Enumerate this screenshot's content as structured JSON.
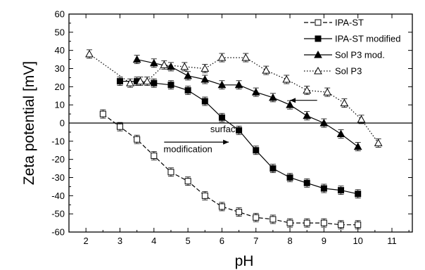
{
  "chart_data": {
    "type": "line",
    "xlabel": "pH",
    "ylabel": "Zeta potential [mV]",
    "xlim": [
      1.5,
      11.6
    ],
    "ylim": [
      -60,
      60
    ],
    "xticks": [
      2,
      3,
      4,
      5,
      6,
      7,
      8,
      9,
      10,
      11
    ],
    "yticks": [
      -60,
      -50,
      -40,
      -30,
      -20,
      -10,
      0,
      10,
      20,
      30,
      40,
      50,
      60
    ],
    "grid": false,
    "legend_position": "top-right",
    "series": [
      {
        "name": "IPA-ST",
        "marker": "open-square",
        "line": "dashed",
        "x": [
          2.5,
          3.0,
          3.5,
          4.0,
          4.5,
          5.0,
          5.5,
          6.0,
          6.5,
          7.0,
          7.5,
          8.0,
          8.5,
          9.0,
          9.5,
          10.0
        ],
        "y": [
          5,
          -2,
          -9,
          -18,
          -27,
          -32,
          -40,
          -46,
          -49,
          -52,
          -53,
          -55,
          -55,
          -55,
          -56,
          -56
        ]
      },
      {
        "name": "IPA-ST modified",
        "marker": "filled-square",
        "line": "solid",
        "x": [
          3.0,
          3.5,
          4.0,
          4.5,
          5.0,
          5.5,
          6.0,
          6.5,
          7.0,
          7.5,
          8.0,
          8.5,
          9.0,
          9.5,
          10.0
        ],
        "y": [
          23,
          23,
          22,
          21,
          18,
          12,
          3,
          -4,
          -15,
          -25,
          -30,
          -33,
          -36,
          -37,
          -39
        ]
      },
      {
        "name": "Sol P3 mod.",
        "marker": "filled-triangle",
        "line": "solid",
        "x": [
          3.5,
          4.0,
          4.5,
          5.0,
          5.5,
          6.0,
          6.5,
          7.0,
          7.5,
          8.0,
          8.5,
          9.0,
          9.5,
          10.0
        ],
        "y": [
          35,
          33,
          31,
          26,
          24,
          21,
          21,
          17,
          14,
          10,
          4,
          0,
          -6,
          -13
        ]
      },
      {
        "name": "Sol P3",
        "marker": "open-triangle",
        "line": "dotted",
        "x": [
          2.1,
          3.3,
          3.6,
          3.8,
          4.3,
          4.9,
          5.5,
          6.0,
          6.7,
          7.3,
          7.9,
          8.5,
          9.1,
          9.6,
          10.1,
          10.6
        ],
        "y": [
          38,
          22,
          23,
          23,
          32,
          31,
          30,
          36,
          36,
          29,
          24,
          18,
          17,
          11,
          2,
          -11
        ]
      }
    ],
    "annotations": [
      {
        "text": "surface",
        "x": 6.1,
        "y": -5
      },
      {
        "text": "modification",
        "x": 5.0,
        "y": -16
      }
    ],
    "arrows": [
      {
        "from": [
          4.3,
          -10.5
        ],
        "to": [
          6.2,
          -10.5
        ],
        "direction": "right"
      },
      {
        "from": [
          8.8,
          12.5
        ],
        "to": [
          8.0,
          12.5
        ],
        "direction": "left"
      }
    ]
  }
}
